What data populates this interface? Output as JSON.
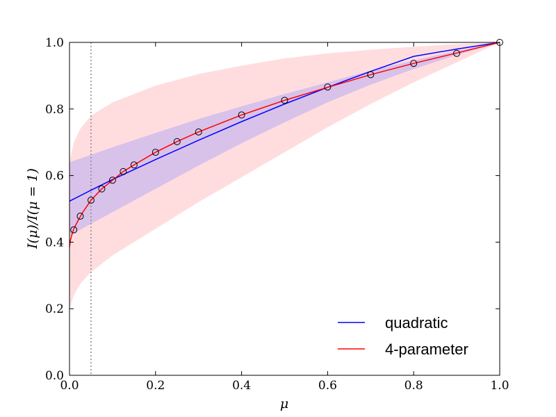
{
  "chart_data": {
    "type": "line",
    "xlabel": "μ",
    "ylabel": "I(μ)/I(μ = 1)",
    "xlim": [
      0.0,
      1.0
    ],
    "ylim": [
      0.0,
      1.0
    ],
    "grid": false,
    "legend_position": "bottom-right",
    "x_ticks": [
      "0.0",
      "0.2",
      "0.4",
      "0.6",
      "0.8",
      "1.0"
    ],
    "y_ticks": [
      "0.0",
      "0.2",
      "0.4",
      "0.6",
      "0.8",
      "1.0"
    ],
    "vertical_reference_line": {
      "x": 0.05,
      "style": "dotted",
      "color": "#888888"
    },
    "series": [
      {
        "name": "quadratic",
        "color": "#0000ff",
        "x": [
          0.0,
          0.05,
          0.1,
          0.2,
          0.3,
          0.4,
          0.5,
          0.6,
          0.7,
          0.8,
          0.9,
          1.0
        ],
        "y": [
          0.523,
          0.556,
          0.588,
          0.648,
          0.706,
          0.762,
          0.815,
          0.865,
          0.913,
          0.958,
          0.98,
          1.0
        ]
      },
      {
        "name": "4-parameter",
        "color": "#ff0000",
        "x": [
          0.0,
          0.002,
          0.005,
          0.01,
          0.02,
          0.03,
          0.05,
          0.075,
          0.1,
          0.125,
          0.15,
          0.2,
          0.25,
          0.3,
          0.4,
          0.5,
          0.6,
          0.7,
          0.8,
          0.9,
          1.0
        ],
        "y": [
          0.385,
          0.405,
          0.42,
          0.44,
          0.465,
          0.488,
          0.526,
          0.56,
          0.586,
          0.612,
          0.632,
          0.67,
          0.702,
          0.731,
          0.782,
          0.826,
          0.865,
          0.903,
          0.937,
          0.968,
          1.0
        ]
      }
    ],
    "scatter": {
      "marker": "open-circle",
      "color": "#000000",
      "x": [
        0.01,
        0.025,
        0.05,
        0.075,
        0.1,
        0.125,
        0.15,
        0.2,
        0.25,
        0.3,
        0.4,
        0.5,
        0.6,
        0.7,
        0.8,
        0.9,
        1.0
      ],
      "y": [
        0.437,
        0.478,
        0.526,
        0.56,
        0.586,
        0.612,
        0.632,
        0.67,
        0.702,
        0.731,
        0.782,
        0.826,
        0.866,
        0.903,
        0.937,
        0.967,
        1.0
      ]
    },
    "bands": [
      {
        "color": "#ffb3b8",
        "opacity": 0.45,
        "x": [
          0.0,
          0.01,
          0.025,
          0.05,
          0.1,
          0.2,
          0.3,
          0.4,
          0.5,
          0.6,
          0.7,
          0.8,
          0.9,
          1.0
        ],
        "upper": [
          0.64,
          0.7,
          0.74,
          0.78,
          0.82,
          0.87,
          0.905,
          0.93,
          0.952,
          0.967,
          0.978,
          0.987,
          0.995,
          1.0
        ],
        "lower": [
          0.2,
          0.24,
          0.275,
          0.31,
          0.36,
          0.44,
          0.52,
          0.595,
          0.67,
          0.745,
          0.815,
          0.88,
          0.94,
          1.0
        ]
      },
      {
        "color": "#9090ff",
        "opacity": 0.35,
        "x": [
          0.0,
          0.1,
          0.2,
          0.3,
          0.4,
          0.5,
          0.6,
          0.7,
          0.8,
          0.9,
          1.0
        ],
        "upper": [
          0.64,
          0.685,
          0.728,
          0.77,
          0.808,
          0.845,
          0.88,
          0.915,
          0.946,
          0.975,
          1.0
        ],
        "lower": [
          0.42,
          0.49,
          0.56,
          0.63,
          0.697,
          0.76,
          0.82,
          0.873,
          0.92,
          0.962,
          1.0
        ]
      }
    ]
  }
}
